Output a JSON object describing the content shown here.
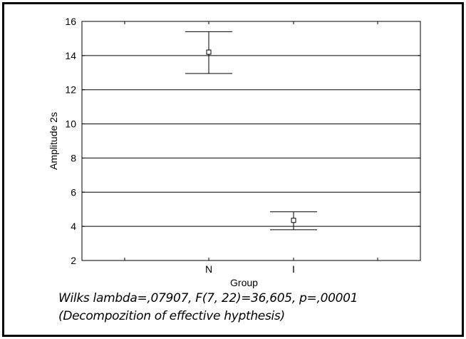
{
  "chart_data": {
    "type": "scatter",
    "subtype": "error-bar",
    "categories": [
      "N",
      "I"
    ],
    "series": [
      {
        "means": [
          14.2,
          4.35
        ],
        "upper": [
          15.4,
          4.85
        ],
        "lower": [
          12.95,
          3.8
        ]
      }
    ],
    "xlabel": "Group",
    "ylabel": "Amplitude 2s",
    "ylim": [
      2,
      16
    ],
    "yticks": [
      2,
      4,
      6,
      8,
      10,
      12,
      14,
      16
    ],
    "grid": "horizontal",
    "colors": {
      "axis": "#000000",
      "grid": "#000000",
      "marker": "#000000"
    }
  },
  "annotations": {
    "stats": "Wilks lambda=,07907, F(7, 22)=36,605, p=,00001",
    "subtitle": "(Decompozition of effective hypthesis)"
  }
}
